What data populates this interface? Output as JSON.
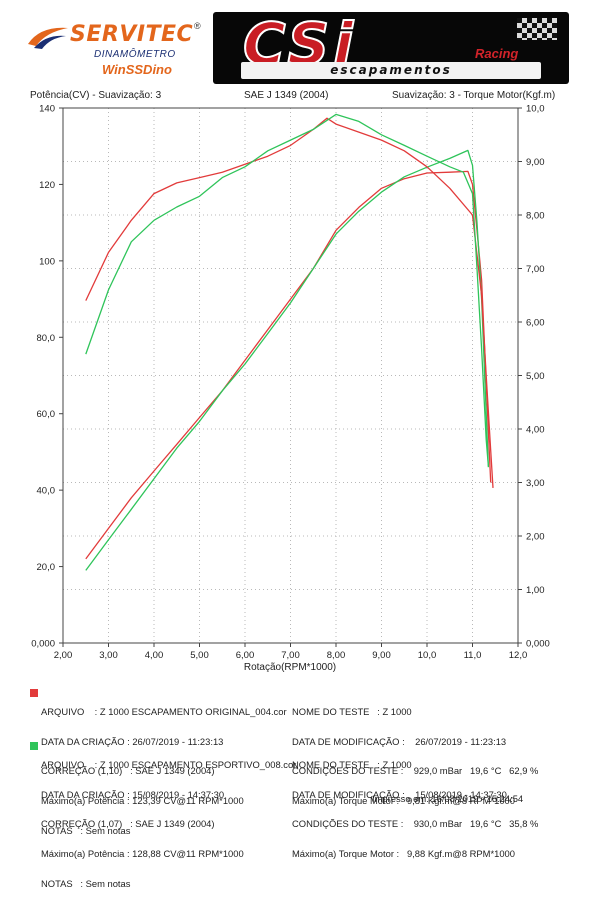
{
  "logos": {
    "servitec": {
      "name": "SERVITEC",
      "reg": "®",
      "sub": "DINAMÔMETRO",
      "product": "WinSSDino"
    },
    "csi": {
      "mark": "CSi",
      "racing": "Racing",
      "tagline": "escapamentos"
    }
  },
  "header": {
    "left": "Potência(CV) - Suavização: 3",
    "center": "SAE J 1349 (2004)",
    "right": "Suavização: 3 - Torque Motor(Kgf.m)"
  },
  "colors": {
    "red": "#e23b3b",
    "green": "#2fc45a",
    "grid": "#b9b9b9"
  },
  "chart_data": {
    "type": "line",
    "xlabel": "Rotação(RPM*1000)",
    "ylabel_left": "Potência(CV) - Suavização: 3",
    "ylabel_right": "Suavização: 3 - Torque Motor(Kgf.m)",
    "xlim": [
      2.0,
      12.0
    ],
    "ylim_left": [
      0,
      140
    ],
    "ylim_right": [
      0,
      10
    ],
    "x_ticks": [
      "2,00",
      "3,00",
      "4,00",
      "5,00",
      "6,00",
      "7,00",
      "8,00",
      "9,00",
      "10,0",
      "11,0",
      "12,0"
    ],
    "y_left_ticks": [
      "0,000",
      "20,0",
      "40,0",
      "60,0",
      "80,0",
      "100",
      "120",
      "140"
    ],
    "y_right_ticks": [
      "0,000",
      "1,00",
      "2,00",
      "3,00",
      "4,00",
      "5,00",
      "6,00",
      "7,00",
      "8,00",
      "9,00",
      "10,0"
    ],
    "grid": true,
    "series": [
      {
        "name": "Z 1000 ESCAPAMENTO ORIGINAL_004.cor",
        "color": "red",
        "kind": "power",
        "axis": "left",
        "x": [
          2.5,
          3.0,
          3.5,
          4.0,
          4.5,
          5.0,
          5.5,
          6.0,
          6.5,
          7.0,
          7.5,
          8.0,
          8.5,
          9.0,
          9.5,
          10.0,
          10.5,
          10.9,
          11.0,
          11.1,
          11.2,
          11.3,
          11.4
        ],
        "y": [
          22,
          30,
          38,
          45,
          52,
          59,
          66,
          74,
          82,
          90,
          98,
          108,
          114,
          119,
          121.5,
          123,
          123.2,
          123.4,
          120,
          108,
          95,
          68,
          42
        ]
      },
      {
        "name": "Z 1000 ESCAPAMENTO ESPORTIVO_008.cor",
        "color": "green",
        "kind": "power",
        "axis": "left",
        "x": [
          2.5,
          3.0,
          3.5,
          4.0,
          4.5,
          5.0,
          5.5,
          6.0,
          6.5,
          7.0,
          7.5,
          8.0,
          8.5,
          9.0,
          9.5,
          10.0,
          10.5,
          10.9,
          11.0,
          11.1,
          11.2,
          11.3,
          11.35
        ],
        "y": [
          19,
          27,
          35,
          43,
          51,
          58,
          66,
          73,
          81,
          89,
          98,
          107,
          113,
          118,
          122,
          124.5,
          126.8,
          128.9,
          125,
          110,
          90,
          60,
          46
        ]
      },
      {
        "name": "Z 1000 ESCAPAMENTO ORIGINAL_004.cor",
        "color": "red",
        "kind": "torque",
        "axis": "right",
        "x": [
          2.5,
          3.0,
          3.5,
          4.0,
          4.5,
          5.0,
          5.5,
          6.0,
          6.5,
          7.0,
          7.5,
          7.8,
          8.0,
          8.5,
          9.0,
          9.5,
          10.0,
          10.5,
          11.0,
          11.2,
          11.3,
          11.4,
          11.45
        ],
        "y": [
          6.4,
          7.3,
          7.9,
          8.4,
          8.6,
          8.7,
          8.8,
          8.95,
          9.1,
          9.3,
          9.6,
          9.81,
          9.7,
          9.55,
          9.4,
          9.2,
          8.9,
          8.5,
          8.0,
          6.5,
          5.0,
          3.6,
          2.9
        ]
      },
      {
        "name": "Z 1000 ESCAPAMENTO ESPORTIVO_008.cor",
        "color": "green",
        "kind": "torque",
        "axis": "right",
        "x": [
          2.5,
          3.0,
          3.5,
          4.0,
          4.5,
          5.0,
          5.5,
          6.0,
          6.5,
          7.0,
          7.5,
          8.0,
          8.5,
          9.0,
          9.5,
          10.0,
          10.5,
          10.8,
          11.0,
          11.1,
          11.2,
          11.3,
          11.35
        ],
        "y": [
          5.4,
          6.6,
          7.5,
          7.9,
          8.15,
          8.35,
          8.7,
          8.9,
          9.2,
          9.4,
          9.6,
          9.88,
          9.75,
          9.5,
          9.3,
          9.1,
          8.9,
          8.8,
          8.4,
          7.0,
          5.5,
          3.8,
          3.3
        ]
      }
    ]
  },
  "tests": [
    {
      "color": "red",
      "left": [
        "ARQUIVO    : Z 1000 ESCAPAMENTO ORIGINAL_004.cor",
        "DATA DA CRIAÇÃO : 26/07/2019 - 11:23:13",
        "CORREÇÃO (1,10)   : SAE J 1349 (2004)",
        "Máximo(a) Potência : 123,39 CV@11 RPM*1000",
        "NOTAS   : Sem notas"
      ],
      "right": [
        "NOME DO TESTE   : Z 1000",
        "DATA DE MODIFICAÇÃO :    26/07/2019 - 11:23:13",
        "CONDIÇÕES DO TESTE :    929,0 mBar   19,6 °C   62,9 %",
        "Máximo(a) Torque Motor :   9,81 Kgf.m@8 RPM*1000"
      ]
    },
    {
      "color": "green",
      "left": [
        "ARQUIVO    : Z 1000 ESCAPAMENTO ESPORTIVO_008.cor",
        "DATA DA CRIAÇÃO : 15/08/2019 - 14:37:30",
        "CORREÇÃO (1,07)   : SAE J 1349 (2004)",
        "Máximo(a) Potência : 128,88 CV@11 RPM*1000",
        "NOTAS   : Sem notas"
      ],
      "right": [
        "NOME DO TESTE   : Z 1000",
        "DATA DE MODIFICAÇÃO :    15/08/2019 - 14:37:30",
        "CONDIÇÕES DO TESTE :    930,0 mBar   19,6 °C   35,8 %",
        "Máximo(a) Torque Motor :   9,88 Kgf.m@8 RPM*1000"
      ]
    }
  ],
  "footer": {
    "printed": "Impresso em: 16/08/2019 - 15:24:54"
  }
}
